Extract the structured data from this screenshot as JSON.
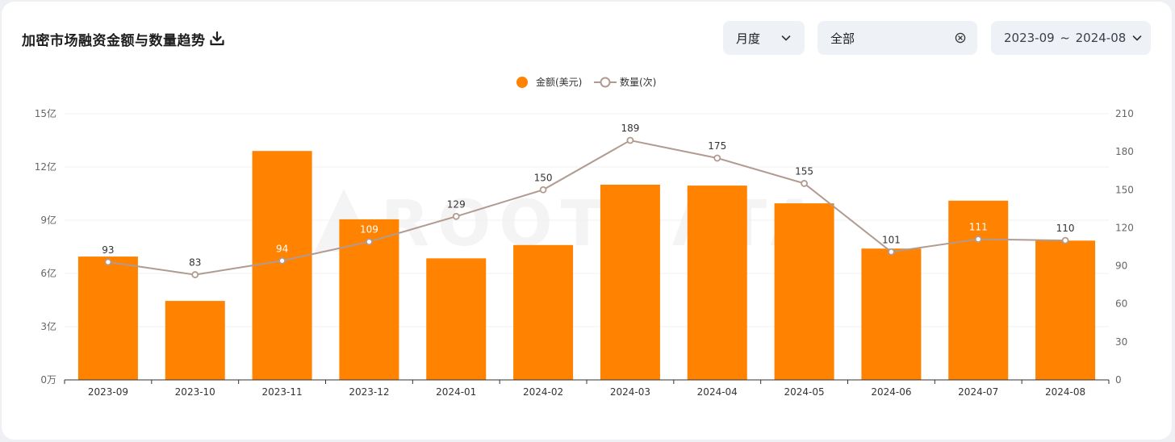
{
  "header": {
    "title": "加密市场融资金额与数量趋势",
    "period_select": "月度",
    "scope_select": "全部",
    "date_start": "2023-09",
    "date_sep": "~",
    "date_end": "2024-08"
  },
  "icons": {
    "download": "download-icon",
    "period_chevron": "chevron-down-icon",
    "scope_clear": "clear-icon",
    "range_chevron": "chevron-down-icon"
  },
  "watermark": "ROOTDATA",
  "colors": {
    "bar": "#ff8200",
    "line": "#b19b91",
    "accent": "#ff8200"
  },
  "chart_data": {
    "type": "bar",
    "categories": [
      "2023-09",
      "2023-10",
      "2023-11",
      "2023-12",
      "2024-01",
      "2024-02",
      "2024-03",
      "2024-04",
      "2024-05",
      "2024-06",
      "2024-07",
      "2024-08"
    ],
    "series": [
      {
        "name": "金额(美元)",
        "type": "bar",
        "axis": "left",
        "values": [
          6.95,
          4.45,
          12.9,
          9.05,
          6.85,
          7.6,
          11.0,
          10.95,
          9.95,
          7.4,
          10.1,
          7.85
        ]
      },
      {
        "name": "数量(次)",
        "type": "line",
        "axis": "right",
        "values": [
          93,
          83,
          94,
          109,
          129,
          150,
          189,
          175,
          155,
          101,
          111,
          110
        ],
        "labels": [
          "93",
          "83",
          "94",
          "109",
          "129",
          "150",
          "189",
          "175",
          "155",
          "101",
          "111",
          "110"
        ]
      }
    ],
    "y_left": {
      "ticks": [
        "0万",
        "3亿",
        "6亿",
        "9亿",
        "12亿",
        "15亿"
      ],
      "ylim": [
        0,
        15
      ],
      "unit": "亿"
    },
    "y_right": {
      "ticks": [
        "0",
        "30",
        "60",
        "90",
        "120",
        "150",
        "180",
        "210"
      ],
      "ylim": [
        0,
        210
      ]
    },
    "legend_position": "top-center",
    "grid": true
  }
}
